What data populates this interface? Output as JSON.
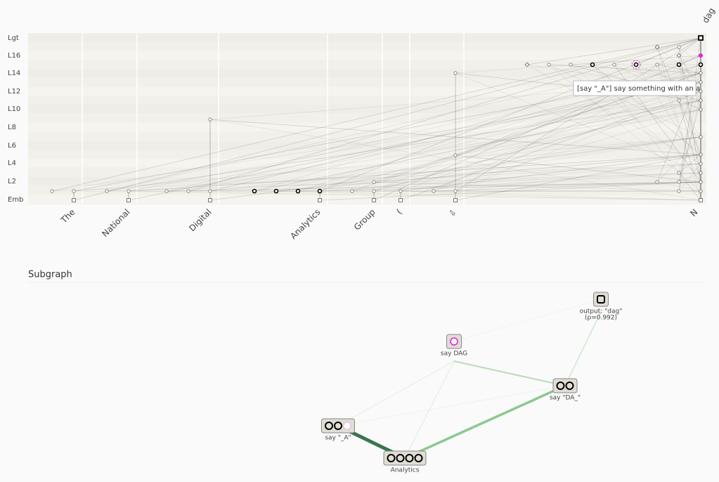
{
  "graph": {
    "layers": [
      "Lgt",
      "L16",
      "L14",
      "L12",
      "L10",
      "L8",
      "L6",
      "L4",
      "L2",
      "Emb"
    ],
    "tokens": [
      "The",
      "National",
      "Digital",
      "Analytics",
      "Group",
      "(",
      "⇩",
      "N"
    ],
    "output_token": "dag",
    "tooltip": "[say \"_A\"] say something with an a"
  },
  "subgraph": {
    "title": "Subgraph",
    "nodes": [
      {
        "label": "output: \"dag\"",
        "detail": "(p=0.992)"
      },
      {
        "label": "say DAG"
      },
      {
        "label": "say \"DA_\""
      },
      {
        "label": "say \"_A\""
      },
      {
        "label": "Analytics"
      }
    ]
  }
}
